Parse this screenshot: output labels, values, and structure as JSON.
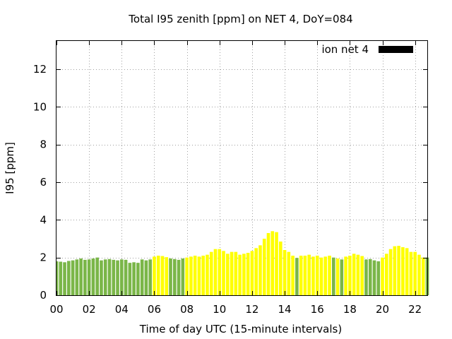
{
  "chart_data": {
    "type": "bar",
    "title": "Total I95 zenith [ppm] on NET 4, DoY=084",
    "xlabel": "Time of day UTC (15-minute intervals)",
    "ylabel": "I95 [ppm]",
    "xlim": [
      0,
      22.75
    ],
    "ylim": [
      0,
      13.5
    ],
    "x_tick_values": [
      0,
      2,
      4,
      6,
      8,
      10,
      12,
      14,
      16,
      18,
      20,
      22
    ],
    "x_tick_labels": [
      "00",
      "02",
      "04",
      "06",
      "08",
      "10",
      "12",
      "14",
      "16",
      "18",
      "20",
      "22"
    ],
    "y_tick_values": [
      0,
      2,
      4,
      6,
      8,
      10,
      12
    ],
    "y_tick_labels": [
      "0",
      "2",
      "4",
      "6",
      "8",
      "10",
      "12"
    ],
    "grid": true,
    "legend": {
      "label": "ion net 4",
      "color": "#000000",
      "placement": "top-right"
    },
    "colors": {
      "green": "#7ab648",
      "yellow": "#ffff00"
    },
    "interval_hours": 0.25,
    "values": [
      1.8,
      1.78,
      1.75,
      1.82,
      1.85,
      1.9,
      1.95,
      1.88,
      1.9,
      1.95,
      2.0,
      1.85,
      1.9,
      1.92,
      1.88,
      1.85,
      1.9,
      1.88,
      1.72,
      1.75,
      1.72,
      1.9,
      1.85,
      1.9,
      2.05,
      2.1,
      2.08,
      2.02,
      1.95,
      1.92,
      1.88,
      1.95,
      2.0,
      2.05,
      2.1,
      2.05,
      2.1,
      2.15,
      2.3,
      2.45,
      2.45,
      2.35,
      2.2,
      2.3,
      2.3,
      2.15,
      2.2,
      2.25,
      2.35,
      2.5,
      2.65,
      3.0,
      3.3,
      3.4,
      3.35,
      2.85,
      2.4,
      2.3,
      2.1,
      1.98,
      2.1,
      2.1,
      2.15,
      2.05,
      2.1,
      2.0,
      2.05,
      2.1,
      2.0,
      1.95,
      1.9,
      2.05,
      2.1,
      2.2,
      2.15,
      2.08,
      1.9,
      1.92,
      1.85,
      1.8,
      2.0,
      2.2,
      2.45,
      2.6,
      2.62,
      2.55,
      2.5,
      2.3,
      2.3,
      2.15,
      2.0,
      2.0
    ],
    "bar_colors": [
      "green",
      "green",
      "green",
      "green",
      "green",
      "green",
      "green",
      "green",
      "green",
      "green",
      "green",
      "green",
      "green",
      "green",
      "green",
      "green",
      "green",
      "green",
      "green",
      "green",
      "green",
      "green",
      "green",
      "green",
      "yellow",
      "yellow",
      "yellow",
      "yellow",
      "green",
      "green",
      "green",
      "green",
      "yellow",
      "yellow",
      "yellow",
      "yellow",
      "yellow",
      "yellow",
      "yellow",
      "yellow",
      "yellow",
      "yellow",
      "yellow",
      "yellow",
      "yellow",
      "yellow",
      "yellow",
      "yellow",
      "yellow",
      "yellow",
      "yellow",
      "yellow",
      "yellow",
      "yellow",
      "yellow",
      "yellow",
      "yellow",
      "yellow",
      "yellow",
      "green",
      "yellow",
      "yellow",
      "yellow",
      "yellow",
      "yellow",
      "yellow",
      "yellow",
      "yellow",
      "green",
      "yellow",
      "green",
      "yellow",
      "yellow",
      "yellow",
      "yellow",
      "yellow",
      "green",
      "green",
      "green",
      "green",
      "yellow",
      "yellow",
      "yellow",
      "yellow",
      "yellow",
      "yellow",
      "yellow",
      "yellow",
      "yellow",
      "yellow",
      "yellow",
      "green"
    ]
  }
}
